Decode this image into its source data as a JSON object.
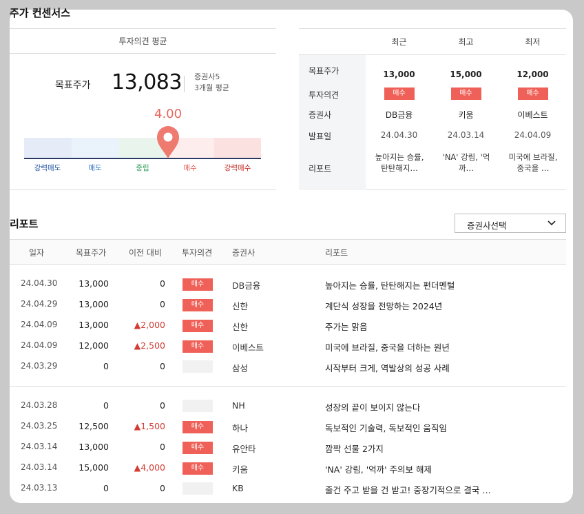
{
  "section_title": "주가 컨센서스",
  "avg": {
    "header": "투자의견 평균",
    "target_label": "목표주가",
    "target_value": "13,083",
    "brokers": "증권사5",
    "period": "3개월 평균",
    "score": "4.00",
    "score_value": 4.0,
    "scale": [
      "강력매도",
      "매도",
      "중립",
      "매수",
      "강력매수"
    ],
    "scale_colors": [
      "#1f4fa0",
      "#2b6fc4",
      "#2e9a57",
      "#e05a4f",
      "#c0261c"
    ]
  },
  "compare": {
    "columns": [
      "최근",
      "최고",
      "최저"
    ],
    "rows": [
      "목표주가",
      "투자의견",
      "증권사",
      "발표일",
      "리포트"
    ],
    "recent": {
      "price": "13,000",
      "opinion": "매수",
      "firm": "DB금융",
      "date": "24.04.30",
      "report": "높아지는 승률, 탄탄해지…"
    },
    "high": {
      "price": "15,000",
      "opinion": "매수",
      "firm": "키움",
      "date": "24.03.14",
      "report": "'NA' 강림, '억까…"
    },
    "low": {
      "price": "12,000",
      "opinion": "매수",
      "firm": "이베스트",
      "date": "24.04.09",
      "report": "미국에 브라질, 중국을 …"
    }
  },
  "report": {
    "title": "리포트",
    "select_label": "증권사선택",
    "headers": [
      "일자",
      "목표주가",
      "이전 대비",
      "투자의견",
      "증권사",
      "리포트"
    ],
    "rows": [
      {
        "date": "24.04.30",
        "price": "13,000",
        "diff": "0",
        "opinion": "매수",
        "firm": "DB금융",
        "title": "높아지는 승률, 탄탄해지는 펀더멘털"
      },
      {
        "date": "24.04.29",
        "price": "13,000",
        "diff": "0",
        "opinion": "매수",
        "firm": "신한",
        "title": "계단식 성장을 전망하는 2024년"
      },
      {
        "date": "24.04.09",
        "price": "13,000",
        "diff": "▲2,000",
        "opinion": "매수",
        "firm": "신한",
        "title": "주가는 맑음"
      },
      {
        "date": "24.04.09",
        "price": "12,000",
        "diff": "▲2,500",
        "opinion": "매수",
        "firm": "이베스트",
        "title": "미국에 브라질, 중국을 더하는 원년"
      },
      {
        "date": "24.03.29",
        "price": "0",
        "diff": "0",
        "opinion": "",
        "firm": "삼성",
        "title": "시작부터 크게, 역발상의 성공 사례"
      },
      {
        "date": "24.03.28",
        "price": "0",
        "diff": "0",
        "opinion": "",
        "firm": "NH",
        "title": "성장의 끝이 보이지 않는다"
      },
      {
        "date": "24.03.25",
        "price": "12,500",
        "diff": "▲1,500",
        "opinion": "매수",
        "firm": "하나",
        "title": "독보적인 기술력, 독보적인 움직임"
      },
      {
        "date": "24.03.14",
        "price": "13,000",
        "diff": "0",
        "opinion": "매수",
        "firm": "유안타",
        "title": "깜짝 선물 2가지"
      },
      {
        "date": "24.03.14",
        "price": "15,000",
        "diff": "▲4,000",
        "opinion": "매수",
        "firm": "키움",
        "title": "'NA' 강림, '억까' 주의보 해제"
      },
      {
        "date": "24.03.13",
        "price": "0",
        "diff": "0",
        "opinion": "",
        "firm": "KB",
        "title": "줄건 주고 받을 건 받고! 중장기적으로 결국 …"
      }
    ]
  }
}
